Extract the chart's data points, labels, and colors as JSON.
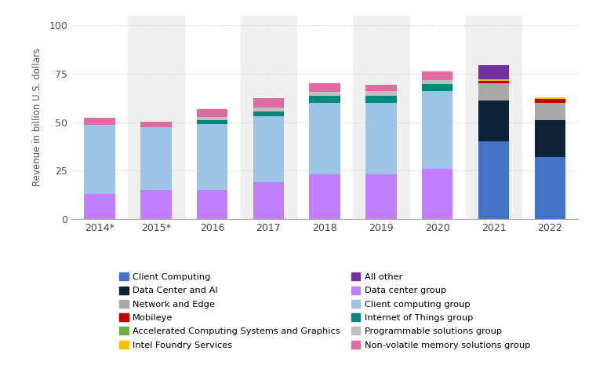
{
  "years": [
    "2014*",
    "2015*",
    "2016",
    "2017",
    "2018",
    "2019",
    "2020",
    "2021",
    "2022"
  ],
  "stacking_order": [
    "Data center group",
    "Client computing group",
    "Internet of Things group",
    "Programmable solutions group",
    "Non-volatile memory solutions group",
    "Client Computing",
    "Data Center and AI",
    "Network and Edge",
    "Mobileye",
    "Intel Foundry Services",
    "All other",
    "Accelerated Computing Systems and Graphics"
  ],
  "segments": {
    "Client Computing": {
      "color": "#4472C4",
      "values": [
        0,
        0,
        0,
        0,
        0,
        0,
        0,
        40.1,
        32.0
      ]
    },
    "Data Center and AI": {
      "color": "#0d2137",
      "values": [
        0,
        0,
        0,
        0,
        0,
        0,
        0,
        21.0,
        19.2
      ]
    },
    "Network and Edge": {
      "color": "#a8a8a8",
      "values": [
        0,
        0,
        0,
        0,
        0,
        0,
        0,
        8.9,
        8.9
      ]
    },
    "Mobileye": {
      "color": "#c00000",
      "values": [
        0,
        0,
        0,
        0,
        0,
        0,
        0,
        1.4,
        1.9
      ]
    },
    "Accelerated Computing Systems and Graphics": {
      "color": "#70ad47",
      "values": [
        0,
        0,
        0,
        0,
        0,
        0,
        0,
        0,
        0
      ]
    },
    "Intel Foundry Services": {
      "color": "#ffc000",
      "values": [
        0,
        0,
        0,
        0,
        0,
        0,
        0,
        0.9,
        0.9
      ]
    },
    "All other": {
      "color": "#7030a0",
      "values": [
        0,
        0,
        0,
        0,
        0,
        0,
        0,
        7.0,
        0
      ]
    },
    "Data center group": {
      "color": "#bf7fff",
      "values": [
        13.0,
        15.0,
        15.0,
        19.0,
        23.0,
        23.0,
        26.0,
        0,
        0
      ]
    },
    "Client computing group": {
      "color": "#9dc3e6",
      "values": [
        35.5,
        32.5,
        34.0,
        34.0,
        37.0,
        37.0,
        40.0,
        0,
        0
      ]
    },
    "Internet of Things group": {
      "color": "#00897B",
      "values": [
        0,
        0,
        2.1,
        2.6,
        3.5,
        3.8,
        3.5,
        0,
        0
      ]
    },
    "Programmable solutions group": {
      "color": "#bfbfbf",
      "values": [
        0,
        0,
        1.7,
        2.1,
        2.1,
        2.1,
        2.1,
        0,
        0
      ]
    },
    "Non-volatile memory solutions group": {
      "color": "#e06c9f",
      "values": [
        3.8,
        2.7,
        3.8,
        4.5,
        4.5,
        3.5,
        4.5,
        0,
        0
      ]
    }
  },
  "legend_order": [
    "Client Computing",
    "Data Center and AI",
    "Network and Edge",
    "Mobileye",
    "Accelerated Computing Systems and Graphics",
    "Intel Foundry Services",
    "All other",
    "Data center group",
    "Client computing group",
    "Internet of Things group",
    "Programmable solutions group",
    "Non-volatile memory solutions group"
  ],
  "ylabel": "Revenue in billion U.S. dollars",
  "ylim": [
    0,
    105
  ],
  "yticks": [
    0,
    25,
    50,
    75,
    100
  ],
  "background_color": "#ffffff",
  "bar_width": 0.55,
  "grid_color": "#cccccc",
  "alternate_bg": "#efefef"
}
